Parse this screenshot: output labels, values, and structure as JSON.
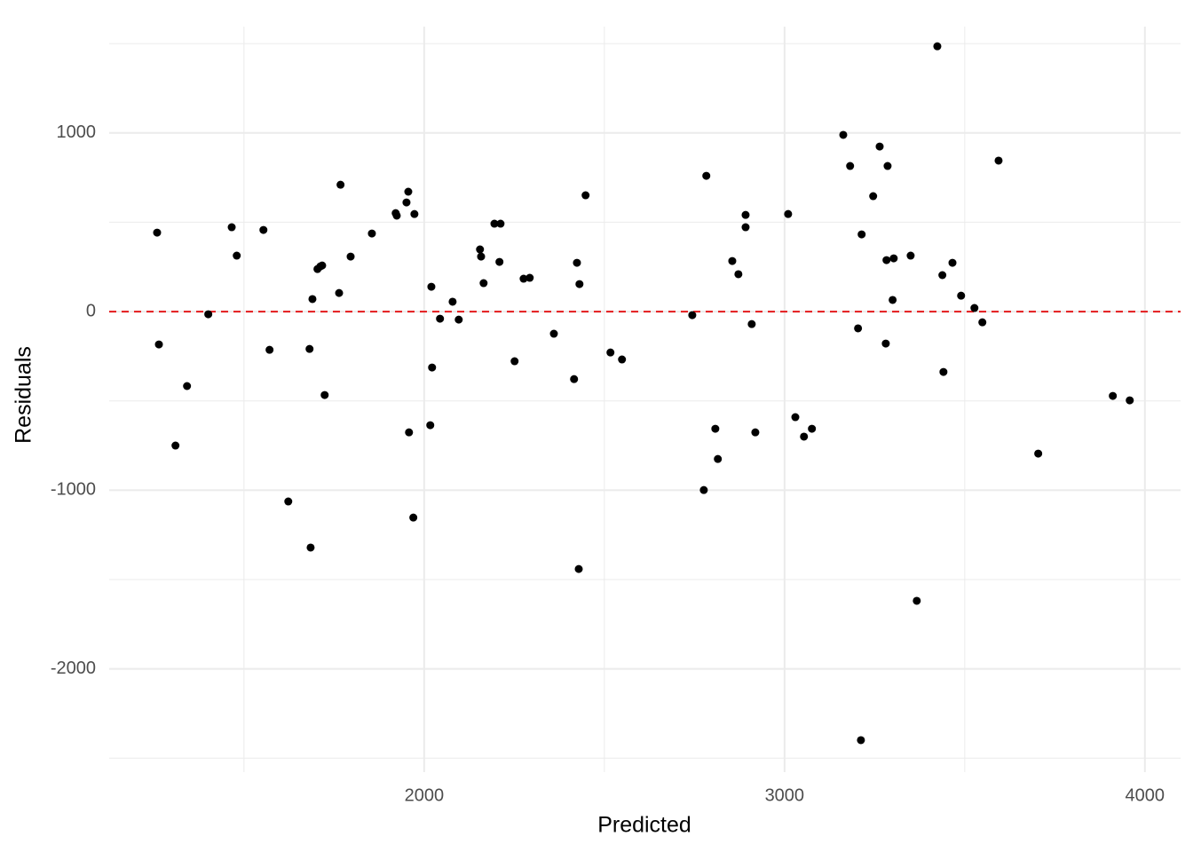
{
  "chart_data": {
    "type": "scatter",
    "xlabel": "Predicted",
    "ylabel": "Residuals",
    "x": [
      1259,
      1264,
      1310,
      1342,
      1401,
      1466,
      1480,
      1554,
      1571,
      1623,
      1682,
      1685,
      1690,
      1704,
      1712,
      1717,
      1724,
      1764,
      1768,
      1796,
      1855,
      1921,
      1924,
      1951,
      1956,
      1958,
      1973,
      1970,
      2017,
      2020,
      2022,
      2044,
      2079,
      2096,
      2155,
      2158,
      2165,
      2195,
      2212,
      2209,
      2251,
      2276,
      2293,
      2360,
      2416,
      2424,
      2429,
      2431,
      2448,
      2517,
      2549,
      2744,
      2776,
      2783,
      2808,
      2815,
      2855,
      2872,
      2892,
      2892,
      2909,
      2919,
      3010,
      3030,
      3054,
      3076,
      3163,
      3182,
      3204,
      3212,
      3214,
      3246,
      3264,
      3281,
      3283,
      3286,
      3300,
      3303,
      3350,
      3367,
      3424,
      3438,
      3441,
      3466,
      3490,
      3527,
      3549,
      3594,
      3704,
      3911,
      3958
    ],
    "series": [
      {
        "color": "#000000",
        "values": [
          442,
          -184,
          -750,
          -417,
          -15,
          472,
          313,
          457,
          -214,
          -1063,
          -209,
          -1321,
          70,
          238,
          253,
          258,
          -467,
          104,
          710,
          308,
          437,
          551,
          537,
          611,
          671,
          -676,
          546,
          -1153,
          -636,
          139,
          -313,
          -40,
          55,
          -45,
          348,
          308,
          159,
          492,
          492,
          278,
          -278,
          184,
          189,
          -124,
          -378,
          273,
          -1441,
          154,
          651,
          -229,
          -268,
          -20,
          -999,
          760,
          -656,
          -825,
          283,
          209,
          541,
          472,
          -70,
          -676,
          546,
          -591,
          -700,
          -656,
          989,
          815,
          -94,
          -2399,
          432,
          646,
          924,
          -179,
          288,
          815,
          65,
          298,
          313,
          -1619,
          1485,
          204,
          -338,
          273,
          89,
          20,
          -60,
          845,
          -795,
          -472,
          -497
        ]
      }
    ],
    "xlim": [
      1126,
      4099
    ],
    "ylim": [
      1595,
      -2578
    ],
    "xticks": [
      2000,
      3000,
      4000
    ],
    "yticks": [
      1000,
      0,
      -1000,
      -2000
    ],
    "x_minor_gridlines": [
      1500,
      2500,
      3500
    ],
    "y_minor_gridlines": [
      1500,
      500,
      -500,
      -1500,
      -2500
    ],
    "grid": true,
    "hline": {
      "y": 0,
      "color": "#e41a1c",
      "linestyle": "dashed"
    }
  }
}
